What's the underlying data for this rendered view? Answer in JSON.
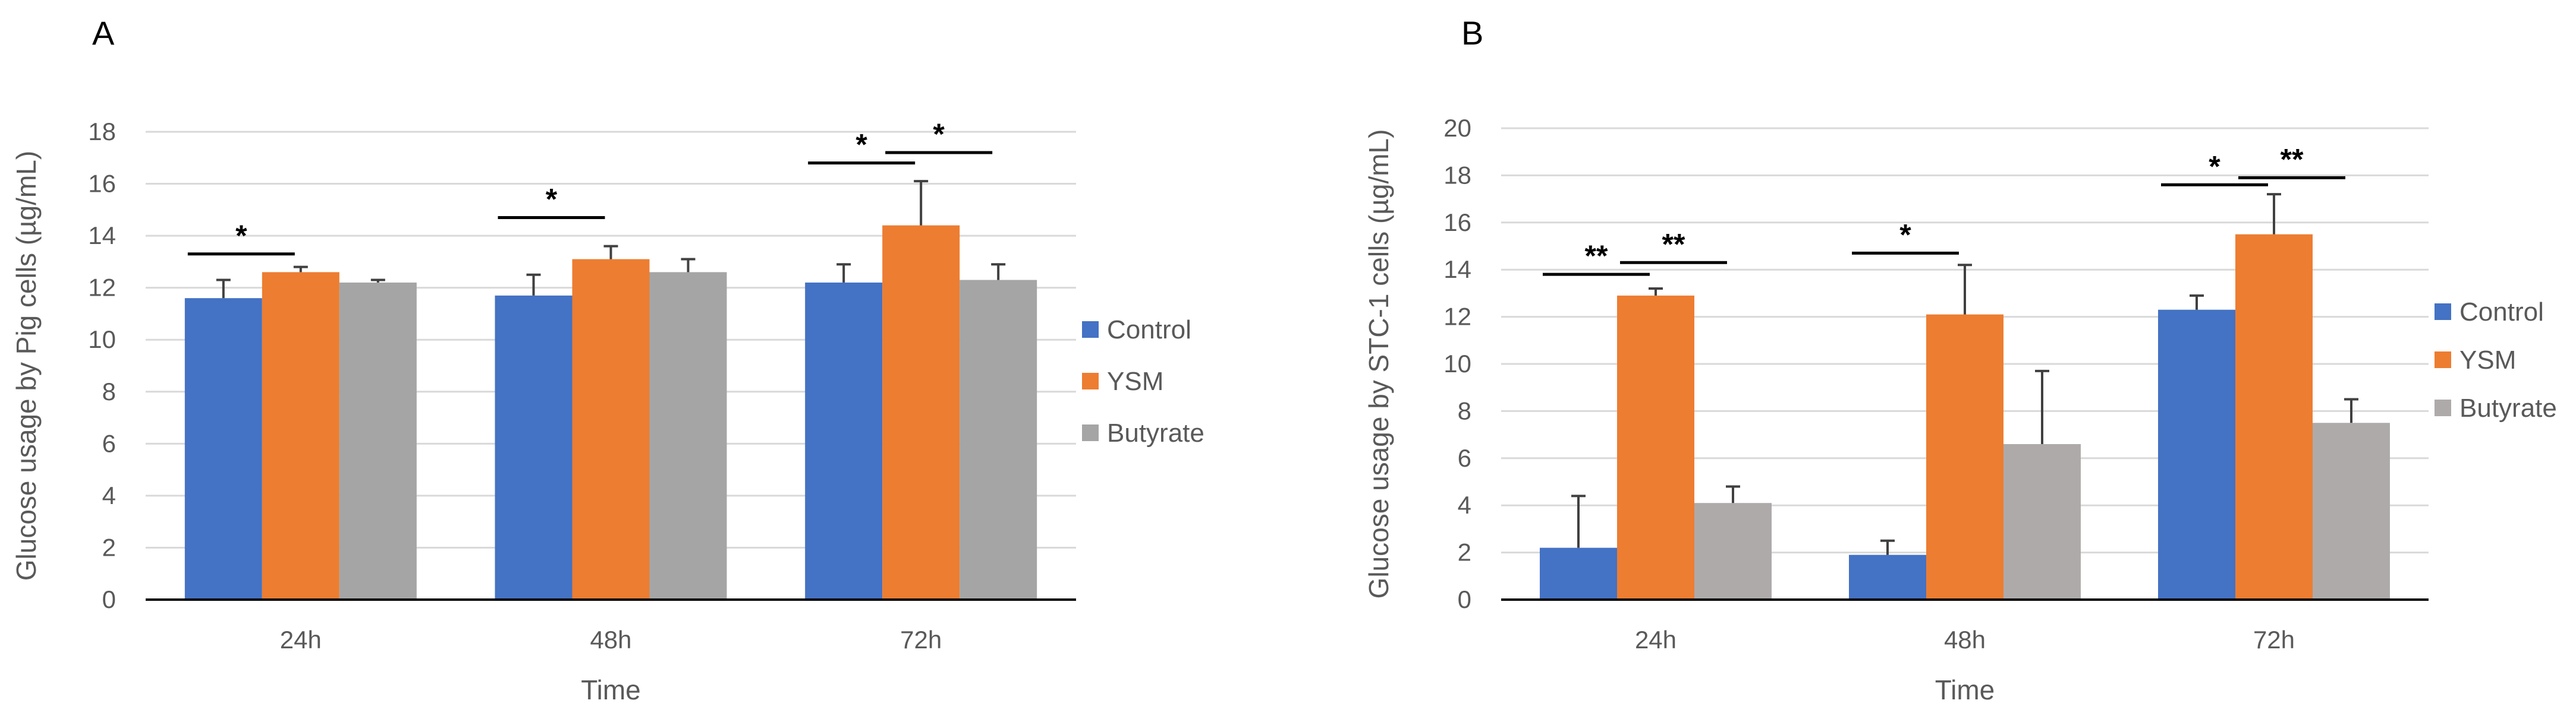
{
  "chart_data": [
    {
      "panel": "A",
      "type": "bar",
      "categories": [
        "24h",
        "48h",
        "72h"
      ],
      "series": [
        {
          "name": "Control",
          "color": "#4472c4",
          "values": [
            11.6,
            11.7,
            12.2
          ],
          "errors": [
            0.7,
            0.8,
            0.7
          ]
        },
        {
          "name": "YSM",
          "color": "#ed7d31",
          "values": [
            12.6,
            13.1,
            14.4
          ],
          "errors": [
            0.2,
            0.5,
            1.7
          ]
        },
        {
          "name": "Butyrate",
          "color": "#a5a5a5",
          "values": [
            12.2,
            12.6,
            12.3
          ],
          "errors": [
            0.1,
            0.5,
            0.6
          ]
        }
      ],
      "xlabel": "Time",
      "ylabel": "Glucose usage by Pig cells (µg/mL)",
      "ylim": [
        0,
        18
      ],
      "yticks": [
        0,
        2,
        4,
        6,
        8,
        10,
        12,
        14,
        16,
        18
      ],
      "grid": true,
      "legend": "right",
      "significance": [
        {
          "category": 0,
          "from": 0,
          "to": 1,
          "label": "*",
          "level": 13.3
        },
        {
          "category": 1,
          "from": 0,
          "to": 1,
          "label": "*",
          "level": 14.7
        },
        {
          "category": 2,
          "from": 0,
          "to": 1,
          "label": "*",
          "level": 16.8
        },
        {
          "category": 2,
          "from": 1,
          "to": 2,
          "label": "*",
          "level": 17.2
        }
      ]
    },
    {
      "panel": "B",
      "type": "bar",
      "categories": [
        "24h",
        "48h",
        "72h"
      ],
      "series": [
        {
          "name": "Control",
          "color": "#4472c4",
          "values": [
            2.2,
            1.9,
            12.3
          ],
          "errors": [
            2.2,
            0.6,
            0.6
          ]
        },
        {
          "name": "YSM",
          "color": "#ed7d31",
          "values": [
            12.9,
            12.1,
            15.5
          ],
          "errors": [
            0.3,
            2.1,
            1.7
          ]
        },
        {
          "name": "Butyrate",
          "color": "#aeaaaa",
          "values": [
            4.1,
            6.6,
            7.5
          ],
          "errors": [
            0.7,
            3.1,
            1.0
          ]
        }
      ],
      "xlabel": "Time",
      "ylabel": "Glucose usage by STC-1 cells (µg/mL)",
      "ylim": [
        0,
        20
      ],
      "yticks": [
        0,
        2,
        4,
        6,
        8,
        10,
        12,
        14,
        16,
        18,
        20
      ],
      "grid": true,
      "legend": "right",
      "significance": [
        {
          "category": 0,
          "from": 0,
          "to": 1,
          "label": "**",
          "level": 13.8
        },
        {
          "category": 0,
          "from": 1,
          "to": 2,
          "label": "**",
          "level": 14.3
        },
        {
          "category": 1,
          "from": 0,
          "to": 1,
          "label": "*",
          "level": 14.7
        },
        {
          "category": 2,
          "from": 0,
          "to": 1,
          "label": "*",
          "level": 17.6
        },
        {
          "category": 2,
          "from": 1,
          "to": 2,
          "label": "**",
          "level": 17.9
        }
      ]
    }
  ]
}
